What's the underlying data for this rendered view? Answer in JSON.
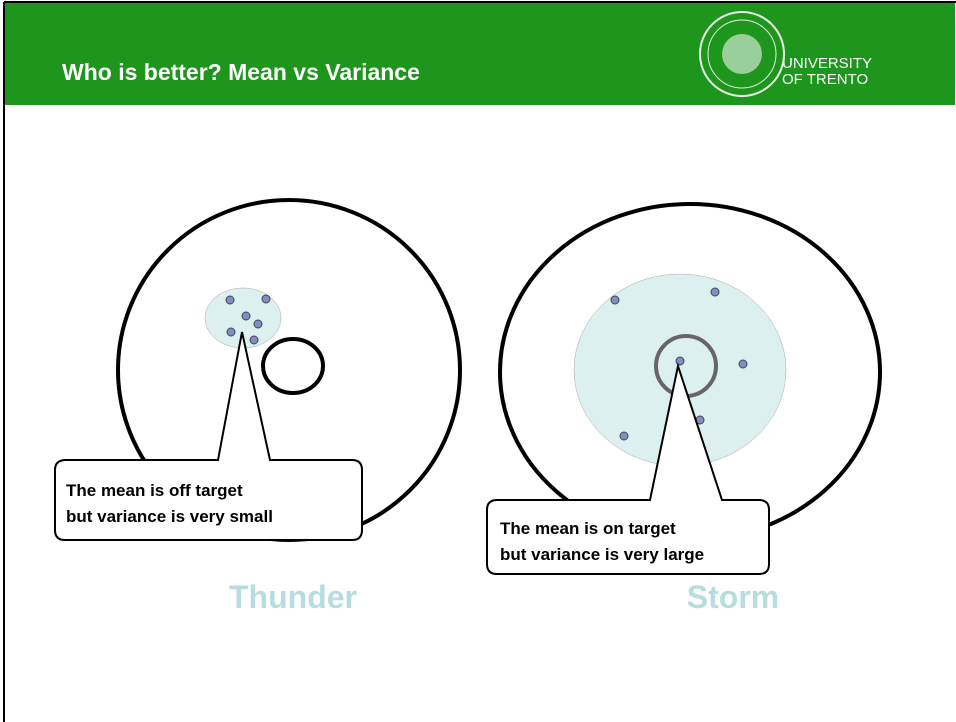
{
  "header": {
    "title": "Who is better? Mean vs Variance",
    "logo_line1": "UNIVERSITY",
    "logo_line2": "OF TRENTO"
  },
  "targets": [
    {
      "label": "Thunder",
      "callout": [
        "The mean is off target",
        "but variance is very small"
      ]
    },
    {
      "label": "Storm",
      "callout": [
        "The mean is on target",
        "but variance is very large"
      ]
    }
  ]
}
